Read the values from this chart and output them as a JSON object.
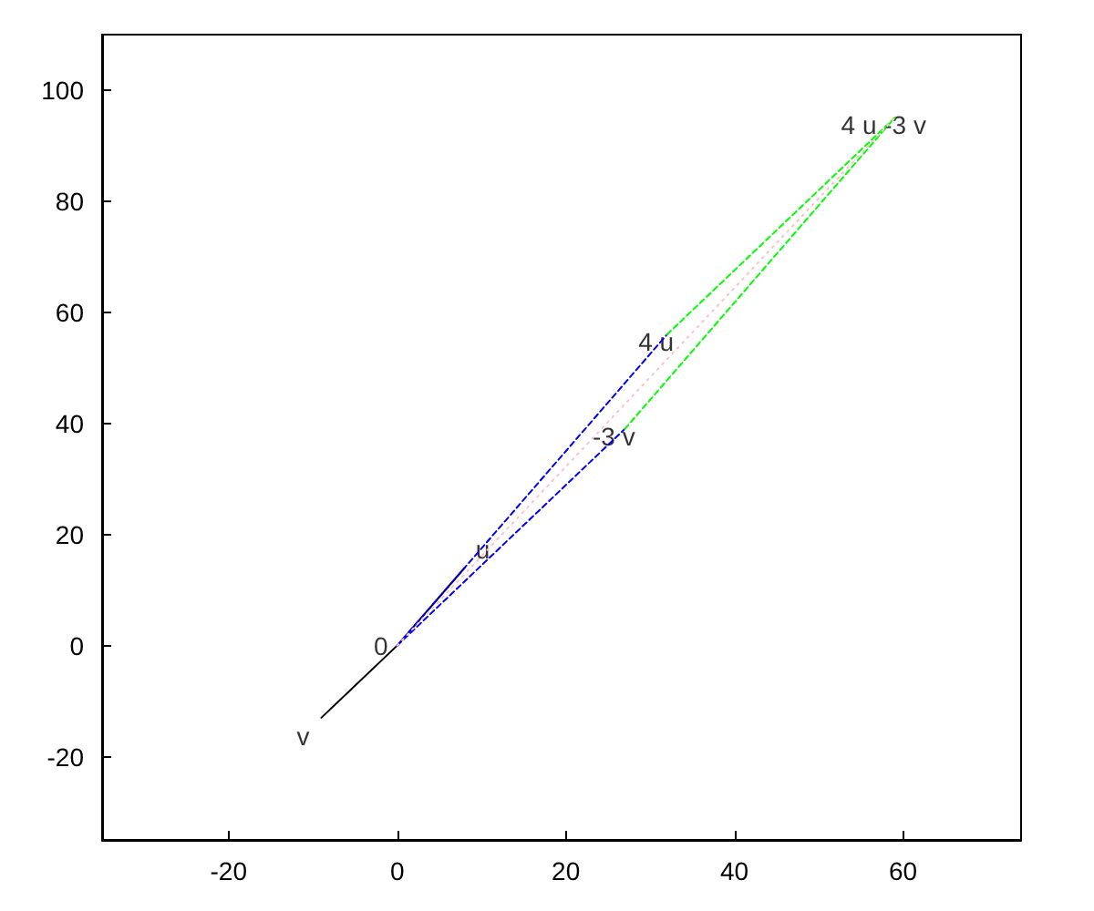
{
  "chart_data": {
    "type": "line",
    "xlim": [
      -35,
      74
    ],
    "ylim": [
      -35,
      110
    ],
    "xticks": [
      -20,
      0,
      20,
      40,
      60
    ],
    "yticks": [
      -20,
      0,
      20,
      40,
      60,
      80,
      100
    ],
    "grid": false,
    "marker": "none",
    "series": [
      {
        "color": "#000000",
        "x": [
          -9,
          0,
          8
        ],
        "values": [
          -13,
          0,
          14
        ],
        "line_style": "solid"
      },
      {
        "color": "#0000ff",
        "x": [
          0,
          32
        ],
        "values": [
          0,
          56
        ],
        "line_style": "dashed"
      },
      {
        "color": "#0000ff",
        "x": [
          0,
          27
        ],
        "values": [
          0,
          39
        ],
        "line_style": "dashed"
      },
      {
        "color": "#00ff00",
        "x": [
          32,
          59
        ],
        "values": [
          56,
          95
        ],
        "line_style": "dashed"
      },
      {
        "color": "#00ff00",
        "x": [
          27,
          59
        ],
        "values": [
          39,
          95
        ],
        "line_style": "dashed"
      },
      {
        "color": "#ffc0cb",
        "x": [
          0,
          59
        ],
        "values": [
          0,
          95
        ],
        "line_style": "dotted"
      }
    ],
    "annotations": [
      {
        "text": "0",
        "x": 0,
        "y": 0
      },
      {
        "text": "u",
        "x": 8,
        "y": 14
      },
      {
        "text": "v",
        "x": -9,
        "y": -13
      },
      {
        "text": "4 u",
        "x": 32,
        "y": 56
      },
      {
        "text": "-3 v",
        "x": 27,
        "y": 39
      },
      {
        "text": "4 u -3 v",
        "x": 59,
        "y": 95
      }
    ]
  }
}
